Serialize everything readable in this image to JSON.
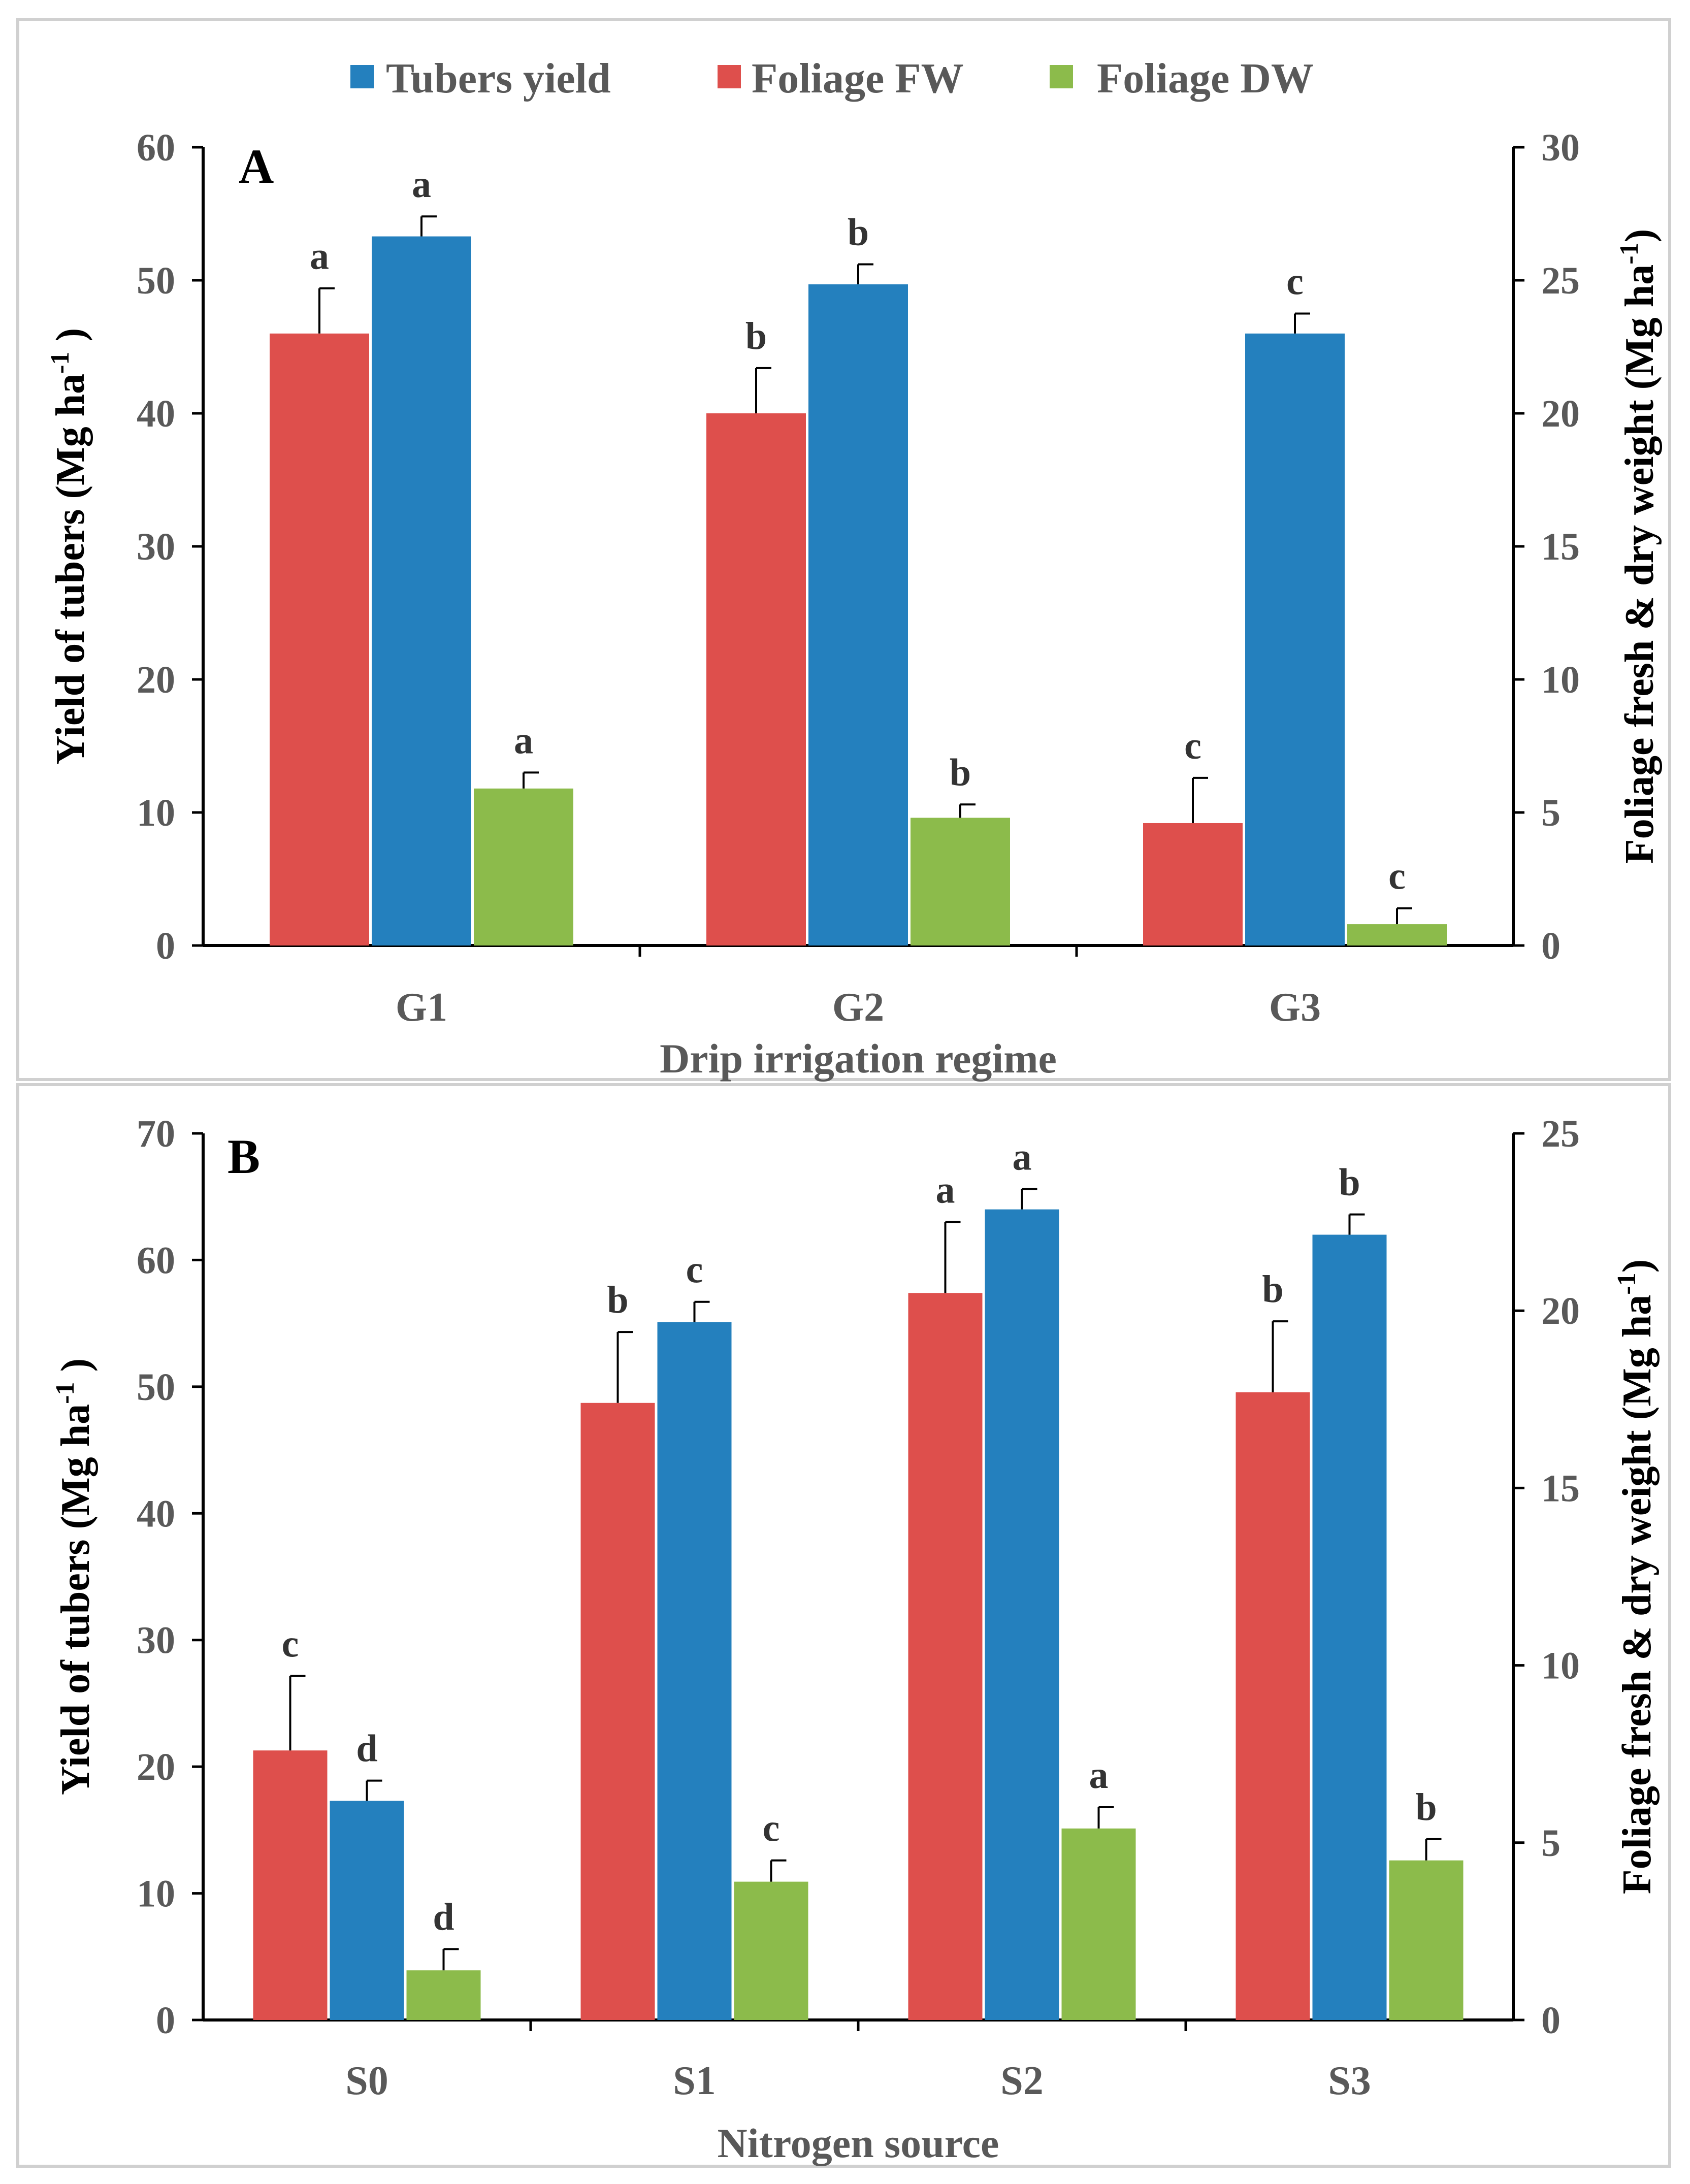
{
  "legend": [
    {
      "name": "Tubers yield",
      "color": "#2480BE"
    },
    {
      "name": "Foliage FW",
      "color": "#DE4F4C"
    },
    {
      "name": "Foliage DW",
      "color": "#8CBB4B"
    }
  ],
  "chart_data": [
    {
      "type": "bar",
      "panel_label": "A",
      "xlabel": "Drip irrigation regime",
      "ylabel": "Yield of tubers (Mg ha",
      "ylabel_sup": "-1",
      "ylabel_close": " )",
      "y2label": "Foliage fresh & dry weight (Mg ha",
      "y2label_sup": "-1",
      "y2label_close": ")",
      "ylim": [
        0,
        60
      ],
      "y2lim": [
        0,
        30
      ],
      "yticks": [
        "0",
        "10",
        "20",
        "30",
        "40",
        "50",
        "60"
      ],
      "y2ticks": [
        "0",
        "5",
        "10",
        "15",
        "20",
        "25",
        "30"
      ],
      "categories": [
        "G1",
        "G2",
        "G3"
      ],
      "series": [
        {
          "name": "Foliage FW",
          "axis": "right",
          "color": "#DE4F4C",
          "values": [
            23.0,
            20.0,
            4.6
          ],
          "errors": [
            1.7,
            1.7,
            1.7
          ],
          "letters": [
            "a",
            "b",
            "c"
          ]
        },
        {
          "name": "Tubers yield",
          "axis": "left",
          "color": "#2480BE",
          "values": [
            53.3,
            49.7,
            46.0
          ],
          "errors": [
            1.5,
            1.5,
            1.5
          ],
          "letters": [
            "a",
            "b",
            "c"
          ]
        },
        {
          "name": "Foliage DW",
          "axis": "right",
          "color": "#8CBB4B",
          "values": [
            5.9,
            4.8,
            0.8
          ],
          "errors": [
            0.6,
            0.5,
            0.6
          ],
          "letters": [
            "a",
            "b",
            "c"
          ]
        }
      ]
    },
    {
      "type": "bar",
      "panel_label": "B",
      "xlabel": "Nitrogen source",
      "ylabel": "Yield of tubers (Mg ha",
      "ylabel_sup": "-1",
      "ylabel_close": " )",
      "y2label": "Foliage fresh & dry weight (Mg ha",
      "y2label_sup": "-1",
      "y2label_close": ")",
      "ylim": [
        0,
        70
      ],
      "y2lim": [
        0,
        25
      ],
      "yticks": [
        "0",
        "10",
        "20",
        "30",
        "40",
        "50",
        "60",
        "70"
      ],
      "y2ticks": [
        "0",
        "5",
        "10",
        "15",
        "20",
        "25"
      ],
      "categories": [
        "S0",
        "S1",
        "S2",
        "S3"
      ],
      "series": [
        {
          "name": "Foliage FW",
          "axis": "right",
          "color": "#DE4F4C",
          "values": [
            7.6,
            17.4,
            20.5,
            17.7
          ],
          "errors": [
            2.1,
            2.0,
            2.0,
            2.0
          ],
          "letters": [
            "c",
            "b",
            "a",
            "b"
          ]
        },
        {
          "name": "Tubers yield",
          "axis": "left",
          "color": "#2480BE",
          "values": [
            17.3,
            55.1,
            64.0,
            62.0
          ],
          "errors": [
            1.6,
            1.6,
            1.6,
            1.6
          ],
          "letters": [
            "d",
            "c",
            "a",
            "b"
          ]
        },
        {
          "name": "Foliage DW",
          "axis": "right",
          "color": "#8CBB4B",
          "values": [
            1.4,
            3.9,
            5.4,
            4.5
          ],
          "errors": [
            0.6,
            0.6,
            0.6,
            0.6
          ],
          "letters": [
            "d",
            "c",
            "a",
            "b"
          ]
        }
      ]
    }
  ]
}
